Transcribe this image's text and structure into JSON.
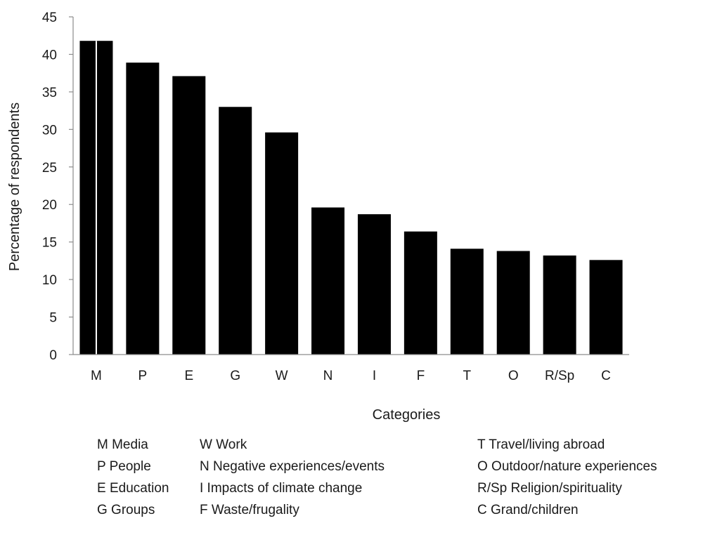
{
  "chart_data": {
    "type": "bar",
    "categories": [
      "M",
      "P",
      "E",
      "G",
      "W",
      "N",
      "I",
      "F",
      "T",
      "O",
      "R/Sp",
      "C"
    ],
    "values": [
      41.8,
      38.9,
      37.1,
      33.0,
      29.6,
      19.6,
      18.7,
      16.4,
      14.1,
      13.8,
      13.2,
      12.6
    ],
    "title": "",
    "xlabel": "Categories",
    "ylabel": "Percentage of respondents",
    "ylim": [
      0,
      45
    ],
    "yticks": [
      0,
      5,
      10,
      15,
      20,
      25,
      30,
      35,
      40,
      45
    ],
    "grid": false,
    "bar_color": "#000000"
  },
  "legend": {
    "columns": [
      [
        "M Media",
        "P People",
        "E Education",
        "G Groups"
      ],
      [
        "W Work",
        "N Negative experiences/events",
        "I Impacts of climate change",
        "F Waste/frugality"
      ],
      [
        "T Travel/living abroad",
        "O Outdoor/nature experiences",
        "R/Sp Religion/spirituality",
        "C Grand/children"
      ]
    ]
  }
}
